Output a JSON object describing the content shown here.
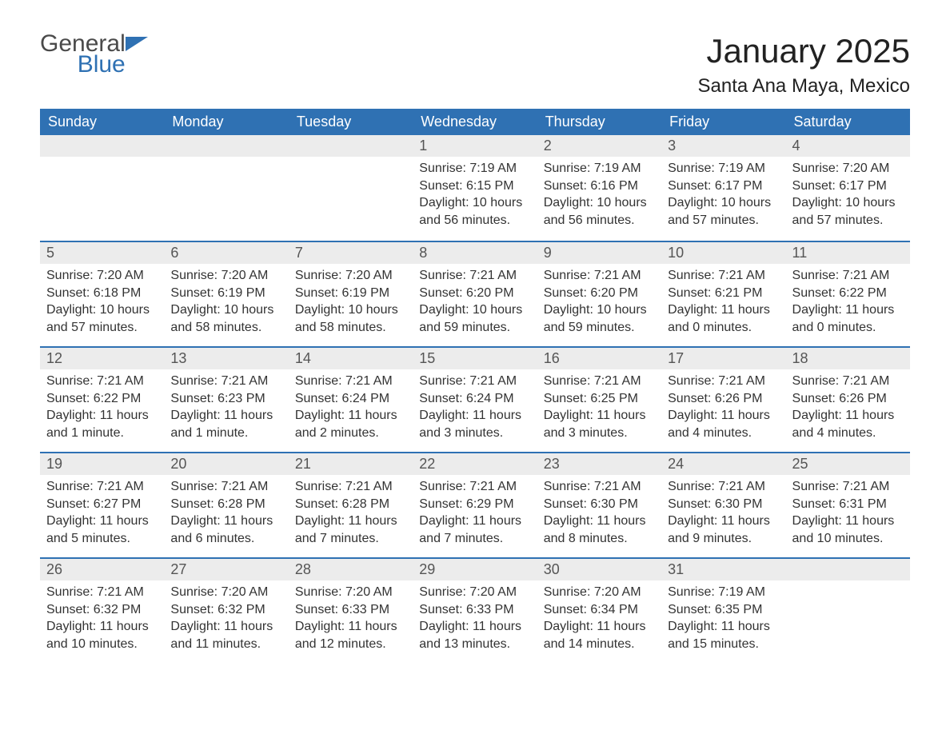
{
  "logo": {
    "word1": "General",
    "word2": "Blue"
  },
  "header": {
    "month_title": "January 2025",
    "location": "Santa Ana Maya, Mexico"
  },
  "colors": {
    "header_bg": "#2f71b3",
    "header_text": "#ffffff",
    "daynum_bg": "#ececec",
    "row_divider": "#2f71b3",
    "body_text": "#333333",
    "page_bg": "#ffffff"
  },
  "weekdays": [
    "Sunday",
    "Monday",
    "Tuesday",
    "Wednesday",
    "Thursday",
    "Friday",
    "Saturday"
  ],
  "label_prefixes": {
    "sunrise": "Sunrise: ",
    "sunset": "Sunset: ",
    "daylight": "Daylight: "
  },
  "weeks": [
    [
      null,
      null,
      null,
      {
        "n": "1",
        "sunrise": "7:19 AM",
        "sunset": "6:15 PM",
        "daylight": "10 hours and 56 minutes."
      },
      {
        "n": "2",
        "sunrise": "7:19 AM",
        "sunset": "6:16 PM",
        "daylight": "10 hours and 56 minutes."
      },
      {
        "n": "3",
        "sunrise": "7:19 AM",
        "sunset": "6:17 PM",
        "daylight": "10 hours and 57 minutes."
      },
      {
        "n": "4",
        "sunrise": "7:20 AM",
        "sunset": "6:17 PM",
        "daylight": "10 hours and 57 minutes."
      }
    ],
    [
      {
        "n": "5",
        "sunrise": "7:20 AM",
        "sunset": "6:18 PM",
        "daylight": "10 hours and 57 minutes."
      },
      {
        "n": "6",
        "sunrise": "7:20 AM",
        "sunset": "6:19 PM",
        "daylight": "10 hours and 58 minutes."
      },
      {
        "n": "7",
        "sunrise": "7:20 AM",
        "sunset": "6:19 PM",
        "daylight": "10 hours and 58 minutes."
      },
      {
        "n": "8",
        "sunrise": "7:21 AM",
        "sunset": "6:20 PM",
        "daylight": "10 hours and 59 minutes."
      },
      {
        "n": "9",
        "sunrise": "7:21 AM",
        "sunset": "6:20 PM",
        "daylight": "10 hours and 59 minutes."
      },
      {
        "n": "10",
        "sunrise": "7:21 AM",
        "sunset": "6:21 PM",
        "daylight": "11 hours and 0 minutes."
      },
      {
        "n": "11",
        "sunrise": "7:21 AM",
        "sunset": "6:22 PM",
        "daylight": "11 hours and 0 minutes."
      }
    ],
    [
      {
        "n": "12",
        "sunrise": "7:21 AM",
        "sunset": "6:22 PM",
        "daylight": "11 hours and 1 minute."
      },
      {
        "n": "13",
        "sunrise": "7:21 AM",
        "sunset": "6:23 PM",
        "daylight": "11 hours and 1 minute."
      },
      {
        "n": "14",
        "sunrise": "7:21 AM",
        "sunset": "6:24 PM",
        "daylight": "11 hours and 2 minutes."
      },
      {
        "n": "15",
        "sunrise": "7:21 AM",
        "sunset": "6:24 PM",
        "daylight": "11 hours and 3 minutes."
      },
      {
        "n": "16",
        "sunrise": "7:21 AM",
        "sunset": "6:25 PM",
        "daylight": "11 hours and 3 minutes."
      },
      {
        "n": "17",
        "sunrise": "7:21 AM",
        "sunset": "6:26 PM",
        "daylight": "11 hours and 4 minutes."
      },
      {
        "n": "18",
        "sunrise": "7:21 AM",
        "sunset": "6:26 PM",
        "daylight": "11 hours and 4 minutes."
      }
    ],
    [
      {
        "n": "19",
        "sunrise": "7:21 AM",
        "sunset": "6:27 PM",
        "daylight": "11 hours and 5 minutes."
      },
      {
        "n": "20",
        "sunrise": "7:21 AM",
        "sunset": "6:28 PM",
        "daylight": "11 hours and 6 minutes."
      },
      {
        "n": "21",
        "sunrise": "7:21 AM",
        "sunset": "6:28 PM",
        "daylight": "11 hours and 7 minutes."
      },
      {
        "n": "22",
        "sunrise": "7:21 AM",
        "sunset": "6:29 PM",
        "daylight": "11 hours and 7 minutes."
      },
      {
        "n": "23",
        "sunrise": "7:21 AM",
        "sunset": "6:30 PM",
        "daylight": "11 hours and 8 minutes."
      },
      {
        "n": "24",
        "sunrise": "7:21 AM",
        "sunset": "6:30 PM",
        "daylight": "11 hours and 9 minutes."
      },
      {
        "n": "25",
        "sunrise": "7:21 AM",
        "sunset": "6:31 PM",
        "daylight": "11 hours and 10 minutes."
      }
    ],
    [
      {
        "n": "26",
        "sunrise": "7:21 AM",
        "sunset": "6:32 PM",
        "daylight": "11 hours and 10 minutes."
      },
      {
        "n": "27",
        "sunrise": "7:20 AM",
        "sunset": "6:32 PM",
        "daylight": "11 hours and 11 minutes."
      },
      {
        "n": "28",
        "sunrise": "7:20 AM",
        "sunset": "6:33 PM",
        "daylight": "11 hours and 12 minutes."
      },
      {
        "n": "29",
        "sunrise": "7:20 AM",
        "sunset": "6:33 PM",
        "daylight": "11 hours and 13 minutes."
      },
      {
        "n": "30",
        "sunrise": "7:20 AM",
        "sunset": "6:34 PM",
        "daylight": "11 hours and 14 minutes."
      },
      {
        "n": "31",
        "sunrise": "7:19 AM",
        "sunset": "6:35 PM",
        "daylight": "11 hours and 15 minutes."
      },
      null
    ]
  ]
}
